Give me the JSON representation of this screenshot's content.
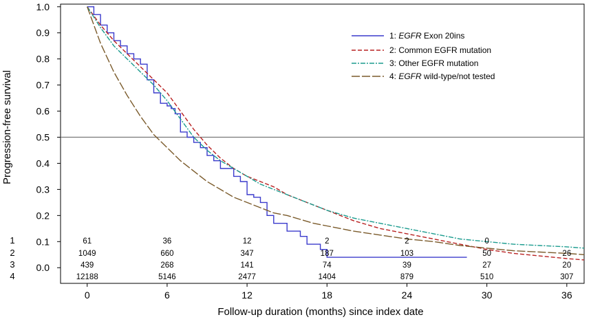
{
  "chart_data": {
    "type": "line",
    "xlabel": "Follow-up duration (months) since index date",
    "ylabel": "Progression-free survival",
    "xlim": [
      -2,
      37.3
    ],
    "ylim": [
      -0.06,
      1.01
    ],
    "x_ticks": [
      "0",
      "6",
      "12",
      "18",
      "24",
      "30",
      "36"
    ],
    "y_ticks": [
      "1.0",
      "0.9",
      "0.8",
      "0.7",
      "0.6",
      "0.5",
      "0.4",
      "0.3",
      "0.2",
      "0.1",
      "0.0"
    ],
    "reference_line": {
      "y": 0.5
    },
    "legend_position": "top-right",
    "series": [
      {
        "name_prefix": "1: ",
        "name_italic": "EGFR",
        "name_suffix": " Exon 20ins",
        "color": "#3a3acc",
        "dash": "solid",
        "step": true,
        "points": [
          [
            0,
            1.0
          ],
          [
            0.5,
            0.97
          ],
          [
            1,
            0.93
          ],
          [
            1.5,
            0.9
          ],
          [
            2,
            0.87
          ],
          [
            2.5,
            0.85
          ],
          [
            3,
            0.82
          ],
          [
            3.5,
            0.8
          ],
          [
            4,
            0.78
          ],
          [
            4.5,
            0.72
          ],
          [
            5,
            0.67
          ],
          [
            5.5,
            0.63
          ],
          [
            6,
            0.62
          ],
          [
            6.3,
            0.61
          ],
          [
            6.6,
            0.59
          ],
          [
            7,
            0.52
          ],
          [
            7.5,
            0.5
          ],
          [
            8,
            0.48
          ],
          [
            8.5,
            0.46
          ],
          [
            9,
            0.43
          ],
          [
            9.5,
            0.41
          ],
          [
            10,
            0.38
          ],
          [
            11,
            0.35
          ],
          [
            11.5,
            0.33
          ],
          [
            12,
            0.28
          ],
          [
            12.5,
            0.27
          ],
          [
            13,
            0.25
          ],
          [
            13.5,
            0.2
          ],
          [
            14,
            0.17
          ],
          [
            15,
            0.14
          ],
          [
            16,
            0.12
          ],
          [
            16.5,
            0.09
          ],
          [
            17,
            0.09
          ],
          [
            17.5,
            0.07
          ],
          [
            18,
            0.04
          ],
          [
            28.5,
            0.04
          ]
        ]
      },
      {
        "name_prefix": "2: ",
        "name_italic": "",
        "name_suffix": "Common EGFR mutation",
        "color": "#b82020",
        "dash": "6,3",
        "step": false,
        "points": [
          [
            0,
            1.0
          ],
          [
            1,
            0.93
          ],
          [
            2,
            0.87
          ],
          [
            3,
            0.82
          ],
          [
            4,
            0.77
          ],
          [
            5,
            0.72
          ],
          [
            6,
            0.67
          ],
          [
            7,
            0.6
          ],
          [
            8,
            0.53
          ],
          [
            9,
            0.47
          ],
          [
            10,
            0.42
          ],
          [
            11,
            0.38
          ],
          [
            12,
            0.35
          ],
          [
            13,
            0.33
          ],
          [
            14,
            0.31
          ],
          [
            15,
            0.28
          ],
          [
            16,
            0.26
          ],
          [
            17,
            0.24
          ],
          [
            18,
            0.22
          ],
          [
            19,
            0.2
          ],
          [
            20,
            0.18
          ],
          [
            21,
            0.165
          ],
          [
            22,
            0.15
          ],
          [
            24,
            0.13
          ],
          [
            26,
            0.11
          ],
          [
            28,
            0.09
          ],
          [
            30,
            0.07
          ],
          [
            32,
            0.055
          ],
          [
            34,
            0.045
          ],
          [
            36,
            0.035
          ],
          [
            37.3,
            0.03
          ]
        ]
      },
      {
        "name_prefix": "3: ",
        "name_italic": "",
        "name_suffix": "Other EGFR mutation",
        "color": "#1a9b8e",
        "dash": "7,2,2,2",
        "step": false,
        "points": [
          [
            0,
            1.0
          ],
          [
            1,
            0.92
          ],
          [
            2,
            0.85
          ],
          [
            3,
            0.8
          ],
          [
            4,
            0.75
          ],
          [
            5,
            0.7
          ],
          [
            6,
            0.64
          ],
          [
            7,
            0.57
          ],
          [
            8,
            0.5
          ],
          [
            9,
            0.45
          ],
          [
            10,
            0.41
          ],
          [
            11,
            0.38
          ],
          [
            12,
            0.35
          ],
          [
            13,
            0.32
          ],
          [
            14,
            0.3
          ],
          [
            15,
            0.28
          ],
          [
            16,
            0.26
          ],
          [
            17,
            0.24
          ],
          [
            18,
            0.22
          ],
          [
            20,
            0.19
          ],
          [
            22,
            0.17
          ],
          [
            24,
            0.15
          ],
          [
            26,
            0.13
          ],
          [
            28,
            0.11
          ],
          [
            30,
            0.1
          ],
          [
            32,
            0.09
          ],
          [
            34,
            0.085
          ],
          [
            36,
            0.08
          ],
          [
            37.3,
            0.075
          ]
        ]
      },
      {
        "name_prefix": "4: ",
        "name_italic": "EGFR",
        "name_suffix": " wild-type/not tested",
        "color": "#7a5a2a",
        "dash": "12,3",
        "step": false,
        "points": [
          [
            0,
            1.0
          ],
          [
            1,
            0.86
          ],
          [
            2,
            0.75
          ],
          [
            3,
            0.66
          ],
          [
            4,
            0.58
          ],
          [
            5,
            0.51
          ],
          [
            6,
            0.46
          ],
          [
            7,
            0.41
          ],
          [
            8,
            0.37
          ],
          [
            9,
            0.33
          ],
          [
            10,
            0.3
          ],
          [
            11,
            0.27
          ],
          [
            12,
            0.25
          ],
          [
            13,
            0.23
          ],
          [
            14,
            0.21
          ],
          [
            15,
            0.2
          ],
          [
            16,
            0.185
          ],
          [
            17,
            0.17
          ],
          [
            18,
            0.16
          ],
          [
            20,
            0.14
          ],
          [
            22,
            0.125
          ],
          [
            24,
            0.11
          ],
          [
            26,
            0.1
          ],
          [
            28,
            0.085
          ],
          [
            30,
            0.075
          ],
          [
            32,
            0.065
          ],
          [
            34,
            0.06
          ],
          [
            36,
            0.055
          ],
          [
            37.3,
            0.05
          ]
        ]
      }
    ],
    "risk_table": {
      "groups": [
        "1",
        "2",
        "3",
        "4"
      ],
      "times": [
        0,
        6,
        12,
        18,
        24,
        30,
        36
      ],
      "rows": [
        [
          "61",
          "36",
          "12",
          "2",
          "2",
          "0",
          ""
        ],
        [
          "1049",
          "660",
          "347",
          "187",
          "103",
          "50",
          "26"
        ],
        [
          "439",
          "268",
          "141",
          "74",
          "39",
          "27",
          "20"
        ],
        [
          "12188",
          "5146",
          "2477",
          "1404",
          "879",
          "510",
          "307"
        ]
      ]
    }
  }
}
